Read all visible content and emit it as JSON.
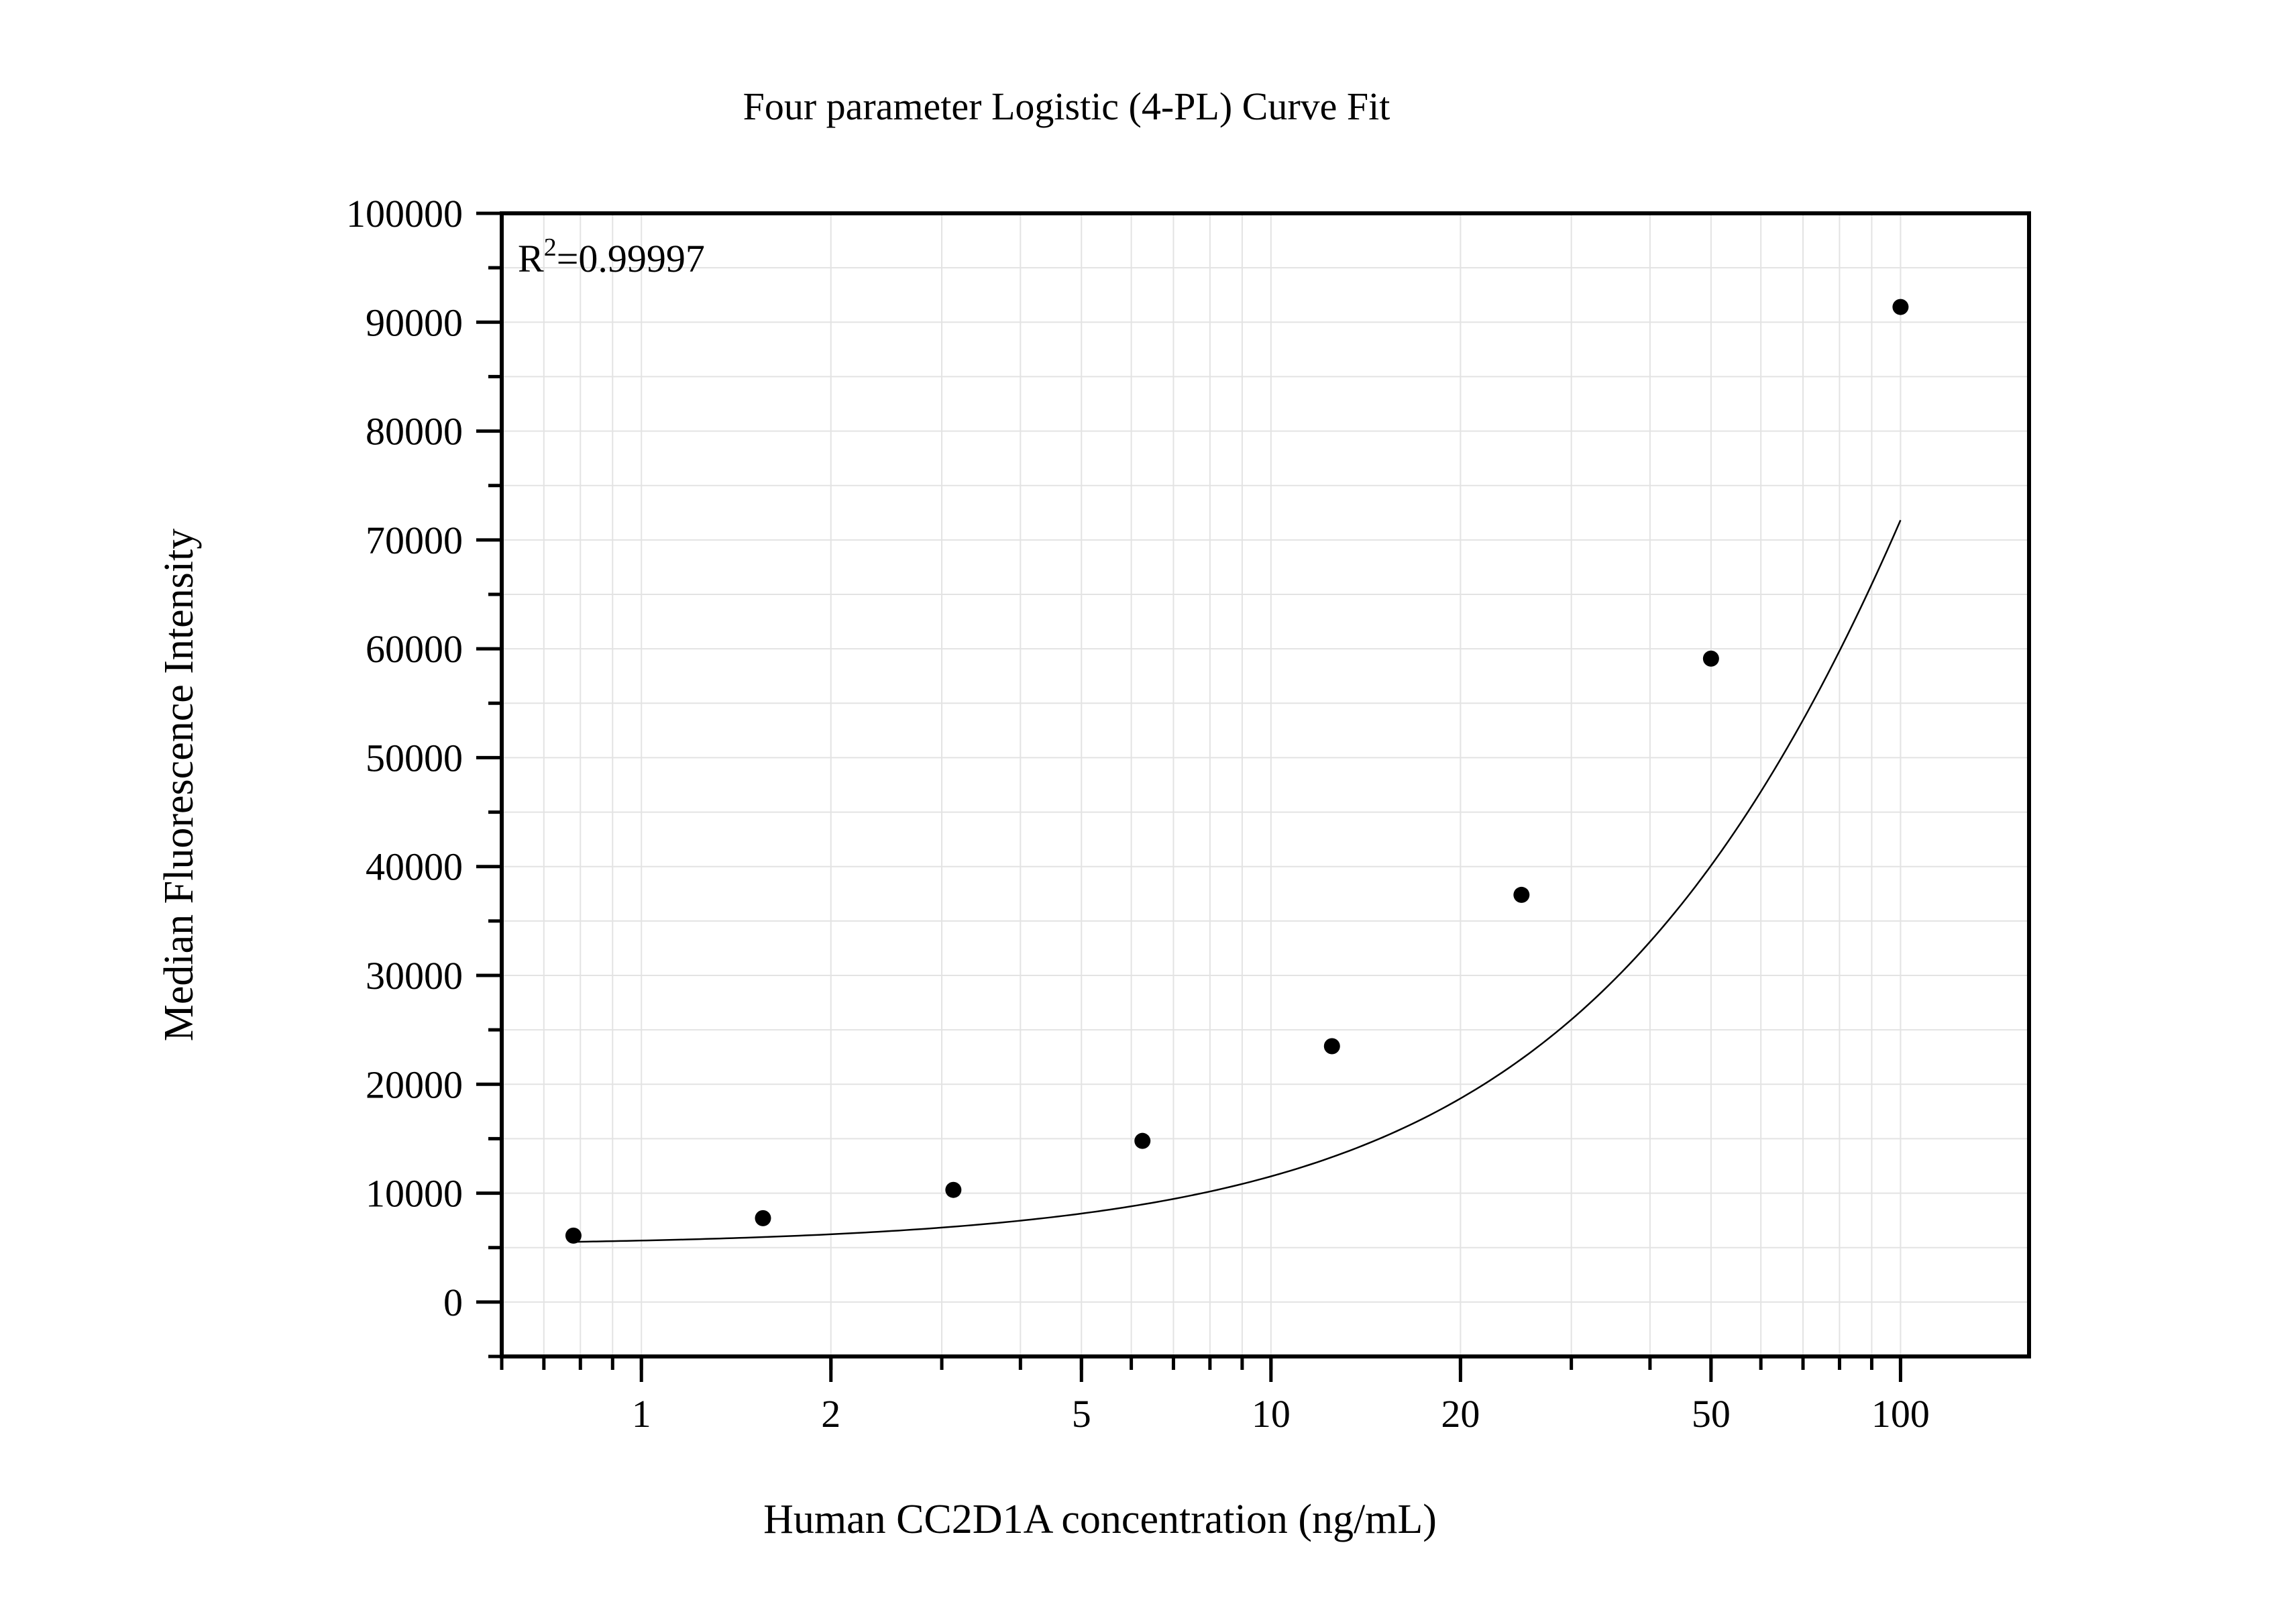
{
  "chart_data": {
    "type": "scatter",
    "title": "Four parameter Logistic (4-PL) Curve Fit",
    "xlabel": "Human CC2D1A concentration (ng/mL)",
    "ylabel": "Median Fluorescence Intensity",
    "annotation": {
      "base": "R",
      "sup": "2",
      "rest": "=0.99997"
    },
    "x_scale": "log",
    "xlim": [
      0.6,
      160
    ],
    "ylim": [
      -5000,
      100000
    ],
    "x_ticks": [
      1,
      2,
      5,
      10,
      20,
      50,
      100
    ],
    "x_tick_labels": [
      "1",
      "2",
      "5",
      "10",
      "20",
      "50",
      "100"
    ],
    "y_ticks": [
      0,
      10000,
      20000,
      30000,
      40000,
      50000,
      60000,
      70000,
      80000,
      90000,
      100000
    ],
    "y_tick_labels": [
      "0",
      "10000",
      "20000",
      "30000",
      "40000",
      "50000",
      "60000",
      "70000",
      "80000",
      "90000",
      "100000"
    ],
    "grid": true,
    "points": [
      {
        "x": 0.78,
        "y": 6100
      },
      {
        "x": 1.56,
        "y": 7700
      },
      {
        "x": 3.13,
        "y": 10300
      },
      {
        "x": 6.25,
        "y": 14800
      },
      {
        "x": 12.5,
        "y": 23500
      },
      {
        "x": 25,
        "y": 37400
      },
      {
        "x": 50,
        "y": 59100
      },
      {
        "x": 100,
        "y": 91400
      }
    ],
    "fit": {
      "model": "4PL",
      "A": 5150,
      "D": 300000,
      "C": 300,
      "B": 1.12,
      "x_range": [
        0.78,
        100
      ]
    }
  }
}
